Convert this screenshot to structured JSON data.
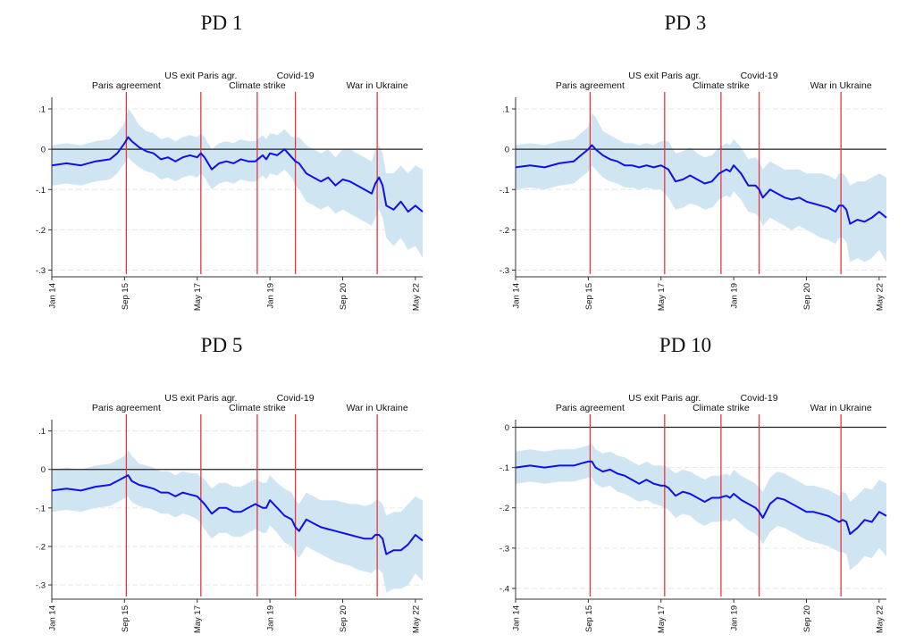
{
  "events": [
    {
      "label": "Paris agreement",
      "t": 20.5
    },
    {
      "label": "US exit Paris agr.",
      "t": 41.0
    },
    {
      "label": "Climate strike",
      "t": 56.5
    },
    {
      "label": "Covid-19",
      "t": 67.0
    },
    {
      "label": "War in Ukraine",
      "t": 89.5
    }
  ],
  "x_tick_labels": [
    "Jan 14",
    "Sep 15",
    "May 17",
    "Jan 19",
    "Sep 20",
    "May 22"
  ],
  "x_tick_positions": [
    0,
    20,
    40,
    60,
    80,
    100
  ],
  "colors": {
    "line": "#1010e8",
    "band": "#cfe6f2",
    "event": "#e8363c",
    "zero": "#222222",
    "grid": "#e6e6e6"
  },
  "chart_data": [
    {
      "type": "line",
      "title": "PD 1",
      "ylim": [
        -0.31,
        0.12
      ],
      "yticks": [
        0.1,
        0,
        -0.1,
        -0.2,
        -0.3
      ],
      "ytick_labels": [
        ".1",
        "0",
        "-.1",
        "-.2",
        "-.3"
      ],
      "grid": true,
      "x": [
        0,
        4,
        8,
        12,
        16,
        18,
        20,
        21,
        22,
        24,
        26,
        28,
        30,
        32,
        34,
        36,
        38,
        40,
        41,
        42,
        44,
        46,
        48,
        50,
        52,
        54,
        56,
        58,
        59,
        60,
        62,
        64,
        66,
        67,
        68,
        70,
        72,
        74,
        76,
        78,
        80,
        82,
        84,
        86,
        88,
        89,
        90,
        91,
        92,
        94,
        96,
        98,
        100,
        102
      ],
      "series": [
        {
          "values": [
            -0.04,
            -0.035,
            -0.04,
            -0.03,
            -0.025,
            -0.01,
            0.015,
            0.03,
            0.02,
            0.005,
            -0.005,
            -0.01,
            -0.025,
            -0.02,
            -0.03,
            -0.02,
            -0.015,
            -0.02,
            -0.01,
            -0.02,
            -0.05,
            -0.035,
            -0.03,
            -0.035,
            -0.025,
            -0.03,
            -0.03,
            -0.015,
            -0.025,
            -0.01,
            -0.015,
            0.0,
            -0.02,
            -0.03,
            -0.035,
            -0.06,
            -0.07,
            -0.08,
            -0.07,
            -0.09,
            -0.075,
            -0.08,
            -0.09,
            -0.1,
            -0.11,
            -0.085,
            -0.07,
            -0.09,
            -0.14,
            -0.15,
            -0.13,
            -0.155,
            -0.14,
            -0.155
          ]
        }
      ],
      "band_lower": [
        -0.09,
        -0.085,
        -0.09,
        -0.08,
        -0.075,
        -0.06,
        -0.035,
        -0.02,
        -0.03,
        -0.045,
        -0.055,
        -0.06,
        -0.075,
        -0.07,
        -0.08,
        -0.07,
        -0.065,
        -0.07,
        -0.06,
        -0.07,
        -0.1,
        -0.085,
        -0.08,
        -0.085,
        -0.075,
        -0.08,
        -0.08,
        -0.065,
        -0.075,
        -0.06,
        -0.065,
        -0.05,
        -0.07,
        -0.09,
        -0.1,
        -0.13,
        -0.14,
        -0.15,
        -0.14,
        -0.16,
        -0.15,
        -0.16,
        -0.17,
        -0.18,
        -0.19,
        -0.17,
        -0.15,
        -0.17,
        -0.22,
        -0.24,
        -0.22,
        -0.25,
        -0.24,
        -0.27
      ],
      "band_upper": [
        0.01,
        0.015,
        0.01,
        0.02,
        0.025,
        0.04,
        0.065,
        0.1,
        0.09,
        0.06,
        0.045,
        0.04,
        0.025,
        0.03,
        0.02,
        0.03,
        0.035,
        0.03,
        0.04,
        0.03,
        0.0,
        0.015,
        0.02,
        0.015,
        0.025,
        0.02,
        0.02,
        0.035,
        0.025,
        0.04,
        0.035,
        0.05,
        0.03,
        0.03,
        0.03,
        0.01,
        0.0,
        -0.01,
        0.0,
        -0.02,
        0.0,
        0.0,
        -0.01,
        -0.02,
        -0.03,
        0.0,
        0.01,
        -0.01,
        -0.06,
        -0.06,
        -0.04,
        -0.06,
        -0.04,
        -0.05
      ]
    },
    {
      "type": "line",
      "title": "PD 3",
      "ylim": [
        -0.31,
        0.12
      ],
      "yticks": [
        0.1,
        0,
        -0.1,
        -0.2,
        -0.3
      ],
      "ytick_labels": [
        ".1",
        "0",
        "-.1",
        "-.2",
        "-.3"
      ],
      "grid": true,
      "x": [
        0,
        4,
        8,
        12,
        16,
        18,
        20,
        21,
        22,
        24,
        26,
        28,
        30,
        32,
        34,
        36,
        38,
        40,
        41,
        42,
        44,
        46,
        48,
        50,
        52,
        54,
        56,
        58,
        59,
        60,
        62,
        64,
        66,
        67,
        68,
        70,
        72,
        74,
        76,
        78,
        80,
        82,
        84,
        86,
        88,
        89,
        90,
        91,
        92,
        94,
        96,
        98,
        100,
        102
      ],
      "series": [
        {
          "values": [
            -0.045,
            -0.04,
            -0.045,
            -0.035,
            -0.03,
            -0.015,
            0.0,
            0.01,
            0.0,
            -0.015,
            -0.025,
            -0.03,
            -0.04,
            -0.04,
            -0.045,
            -0.04,
            -0.045,
            -0.04,
            -0.045,
            -0.05,
            -0.08,
            -0.075,
            -0.065,
            -0.075,
            -0.085,
            -0.08,
            -0.06,
            -0.05,
            -0.055,
            -0.04,
            -0.06,
            -0.09,
            -0.09,
            -0.1,
            -0.12,
            -0.1,
            -0.11,
            -0.12,
            -0.125,
            -0.12,
            -0.13,
            -0.135,
            -0.14,
            -0.145,
            -0.155,
            -0.14,
            -0.14,
            -0.15,
            -0.185,
            -0.175,
            -0.18,
            -0.17,
            -0.155,
            -0.17
          ]
        }
      ],
      "band_lower": [
        -0.1,
        -0.095,
        -0.1,
        -0.09,
        -0.085,
        -0.07,
        -0.055,
        -0.04,
        -0.05,
        -0.07,
        -0.08,
        -0.085,
        -0.095,
        -0.095,
        -0.1,
        -0.095,
        -0.1,
        -0.1,
        -0.11,
        -0.12,
        -0.15,
        -0.145,
        -0.135,
        -0.14,
        -0.15,
        -0.145,
        -0.125,
        -0.115,
        -0.12,
        -0.105,
        -0.125,
        -0.155,
        -0.16,
        -0.17,
        -0.19,
        -0.17,
        -0.18,
        -0.19,
        -0.2,
        -0.19,
        -0.2,
        -0.21,
        -0.22,
        -0.225,
        -0.235,
        -0.22,
        -0.22,
        -0.23,
        -0.28,
        -0.27,
        -0.28,
        -0.27,
        -0.25,
        -0.28
      ],
      "band_upper": [
        0.01,
        0.015,
        0.01,
        0.02,
        0.025,
        0.04,
        0.055,
        0.09,
        0.08,
        0.045,
        0.035,
        0.025,
        0.015,
        0.015,
        0.01,
        0.015,
        0.01,
        0.02,
        0.02,
        0.02,
        -0.01,
        -0.005,
        0.005,
        -0.01,
        -0.02,
        -0.015,
        0.005,
        0.015,
        0.01,
        0.025,
        0.005,
        -0.025,
        -0.02,
        -0.03,
        -0.05,
        -0.03,
        -0.04,
        -0.05,
        -0.05,
        -0.05,
        -0.06,
        -0.06,
        -0.06,
        -0.065,
        -0.075,
        -0.06,
        -0.06,
        -0.07,
        -0.09,
        -0.08,
        -0.08,
        -0.07,
        -0.06,
        -0.07
      ]
    },
    {
      "type": "line",
      "title": "PD 5",
      "ylim": [
        -0.33,
        0.12
      ],
      "yticks": [
        0.1,
        0,
        -0.1,
        -0.2,
        -0.3
      ],
      "ytick_labels": [
        ".1",
        "0",
        "-.1",
        "-.2",
        "-.3"
      ],
      "grid": true,
      "x": [
        0,
        4,
        8,
        12,
        16,
        18,
        20,
        21,
        22,
        24,
        26,
        28,
        30,
        32,
        34,
        36,
        38,
        40,
        41,
        42,
        44,
        46,
        48,
        50,
        52,
        54,
        56,
        58,
        59,
        60,
        62,
        64,
        66,
        67,
        68,
        70,
        72,
        74,
        76,
        78,
        80,
        82,
        84,
        86,
        88,
        89,
        90,
        91,
        92,
        94,
        96,
        98,
        100,
        102
      ],
      "series": [
        {
          "values": [
            -0.055,
            -0.05,
            -0.055,
            -0.045,
            -0.04,
            -0.03,
            -0.02,
            -0.015,
            -0.03,
            -0.04,
            -0.045,
            -0.05,
            -0.06,
            -0.06,
            -0.07,
            -0.06,
            -0.065,
            -0.07,
            -0.08,
            -0.09,
            -0.115,
            -0.1,
            -0.1,
            -0.11,
            -0.11,
            -0.1,
            -0.09,
            -0.1,
            -0.1,
            -0.08,
            -0.1,
            -0.12,
            -0.13,
            -0.15,
            -0.16,
            -0.13,
            -0.14,
            -0.15,
            -0.155,
            -0.16,
            -0.165,
            -0.17,
            -0.175,
            -0.18,
            -0.18,
            -0.17,
            -0.17,
            -0.18,
            -0.22,
            -0.21,
            -0.21,
            -0.195,
            -0.17,
            -0.185
          ]
        }
      ],
      "band_lower": [
        -0.11,
        -0.105,
        -0.11,
        -0.1,
        -0.095,
        -0.085,
        -0.075,
        -0.07,
        -0.085,
        -0.095,
        -0.1,
        -0.105,
        -0.115,
        -0.115,
        -0.125,
        -0.115,
        -0.12,
        -0.13,
        -0.14,
        -0.155,
        -0.18,
        -0.165,
        -0.165,
        -0.175,
        -0.175,
        -0.165,
        -0.155,
        -0.165,
        -0.165,
        -0.145,
        -0.165,
        -0.19,
        -0.2,
        -0.22,
        -0.23,
        -0.2,
        -0.21,
        -0.22,
        -0.23,
        -0.24,
        -0.245,
        -0.25,
        -0.26,
        -0.265,
        -0.27,
        -0.26,
        -0.26,
        -0.27,
        -0.32,
        -0.31,
        -0.31,
        -0.3,
        -0.27,
        -0.29
      ],
      "band_upper": [
        0.0,
        0.005,
        0.0,
        0.01,
        0.015,
        0.025,
        0.035,
        0.05,
        0.035,
        0.015,
        0.01,
        0.005,
        -0.005,
        -0.005,
        -0.015,
        -0.005,
        -0.01,
        -0.01,
        -0.02,
        -0.025,
        -0.05,
        -0.035,
        -0.035,
        -0.045,
        -0.045,
        -0.035,
        -0.025,
        -0.035,
        -0.035,
        -0.015,
        -0.035,
        -0.05,
        -0.06,
        -0.08,
        -0.09,
        -0.06,
        -0.07,
        -0.08,
        -0.08,
        -0.08,
        -0.085,
        -0.09,
        -0.09,
        -0.095,
        -0.09,
        -0.08,
        -0.08,
        -0.09,
        -0.12,
        -0.11,
        -0.11,
        -0.09,
        -0.07,
        -0.08
      ]
    },
    {
      "type": "line",
      "title": "PD 10",
      "ylim": [
        -0.42,
        0.01
      ],
      "yticks": [
        0,
        -0.1,
        -0.2,
        -0.3,
        -0.4
      ],
      "ytick_labels": [
        "0",
        "-.1",
        "-.2",
        "-.3",
        "-.4"
      ],
      "grid": true,
      "x": [
        0,
        4,
        8,
        12,
        16,
        18,
        20,
        21,
        22,
        24,
        26,
        28,
        30,
        32,
        34,
        36,
        38,
        40,
        41,
        42,
        44,
        46,
        48,
        50,
        52,
        54,
        56,
        58,
        59,
        60,
        62,
        64,
        66,
        67,
        68,
        70,
        72,
        74,
        76,
        78,
        80,
        82,
        84,
        86,
        88,
        89,
        90,
        91,
        92,
        94,
        96,
        98,
        100,
        102
      ],
      "series": [
        {
          "values": [
            -0.1,
            -0.095,
            -0.1,
            -0.095,
            -0.095,
            -0.09,
            -0.085,
            -0.085,
            -0.1,
            -0.11,
            -0.105,
            -0.115,
            -0.12,
            -0.13,
            -0.14,
            -0.13,
            -0.14,
            -0.145,
            -0.145,
            -0.15,
            -0.17,
            -0.16,
            -0.165,
            -0.175,
            -0.185,
            -0.175,
            -0.175,
            -0.17,
            -0.175,
            -0.165,
            -0.18,
            -0.19,
            -0.2,
            -0.21,
            -0.225,
            -0.19,
            -0.175,
            -0.18,
            -0.19,
            -0.2,
            -0.21,
            -0.21,
            -0.215,
            -0.22,
            -0.23,
            -0.235,
            -0.23,
            -0.235,
            -0.265,
            -0.25,
            -0.23,
            -0.235,
            -0.21,
            -0.22
          ]
        }
      ],
      "band_lower": [
        -0.14,
        -0.135,
        -0.14,
        -0.135,
        -0.135,
        -0.13,
        -0.125,
        -0.125,
        -0.14,
        -0.15,
        -0.145,
        -0.16,
        -0.165,
        -0.175,
        -0.185,
        -0.18,
        -0.19,
        -0.195,
        -0.2,
        -0.205,
        -0.225,
        -0.215,
        -0.22,
        -0.235,
        -0.245,
        -0.235,
        -0.235,
        -0.23,
        -0.235,
        -0.225,
        -0.24,
        -0.255,
        -0.265,
        -0.275,
        -0.29,
        -0.26,
        -0.245,
        -0.25,
        -0.26,
        -0.27,
        -0.28,
        -0.285,
        -0.29,
        -0.295,
        -0.305,
        -0.31,
        -0.31,
        -0.315,
        -0.355,
        -0.34,
        -0.32,
        -0.325,
        -0.3,
        -0.32
      ],
      "band_upper": [
        -0.06,
        -0.055,
        -0.06,
        -0.055,
        -0.055,
        -0.05,
        -0.045,
        -0.04,
        -0.055,
        -0.065,
        -0.06,
        -0.07,
        -0.075,
        -0.085,
        -0.095,
        -0.085,
        -0.095,
        -0.095,
        -0.095,
        -0.1,
        -0.115,
        -0.105,
        -0.11,
        -0.12,
        -0.13,
        -0.12,
        -0.12,
        -0.115,
        -0.12,
        -0.105,
        -0.12,
        -0.13,
        -0.14,
        -0.15,
        -0.16,
        -0.125,
        -0.11,
        -0.115,
        -0.125,
        -0.135,
        -0.145,
        -0.145,
        -0.15,
        -0.155,
        -0.165,
        -0.17,
        -0.16,
        -0.165,
        -0.185,
        -0.17,
        -0.15,
        -0.155,
        -0.13,
        -0.14
      ]
    }
  ]
}
